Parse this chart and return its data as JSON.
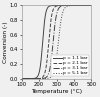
{
  "title": "",
  "xlabel": "Temperature (°C)",
  "ylabel": "Conversion (-)",
  "xlim": [
    100,
    500
  ],
  "ylim": [
    0,
    1.0
  ],
  "xticks": [
    100,
    200,
    300,
    400,
    500
  ],
  "yticks": [
    0.0,
    0.2,
    0.4,
    0.6,
    0.8,
    1.0
  ],
  "curves": [
    {
      "label": "p = 1.1 bar",
      "T0": 220,
      "k": 0.12,
      "style": "-",
      "color": "#444444",
      "lw": 0.7
    },
    {
      "label": "p = 2.1 bar",
      "T0": 255,
      "k": 0.11,
      "style": "--",
      "color": "#444444",
      "lw": 0.7
    },
    {
      "label": "p = 3.1 bar",
      "T0": 280,
      "k": 0.1,
      "style": "-.",
      "color": "#444444",
      "lw": 0.7
    },
    {
      "label": "p = 5.1 bar",
      "T0": 310,
      "k": 0.09,
      "style": ":",
      "color": "#444444",
      "lw": 0.7
    }
  ],
  "background_color": "#f0f0f0",
  "legend_fontsize": 3.2,
  "tick_fontsize": 3.8,
  "label_fontsize": 4.2
}
